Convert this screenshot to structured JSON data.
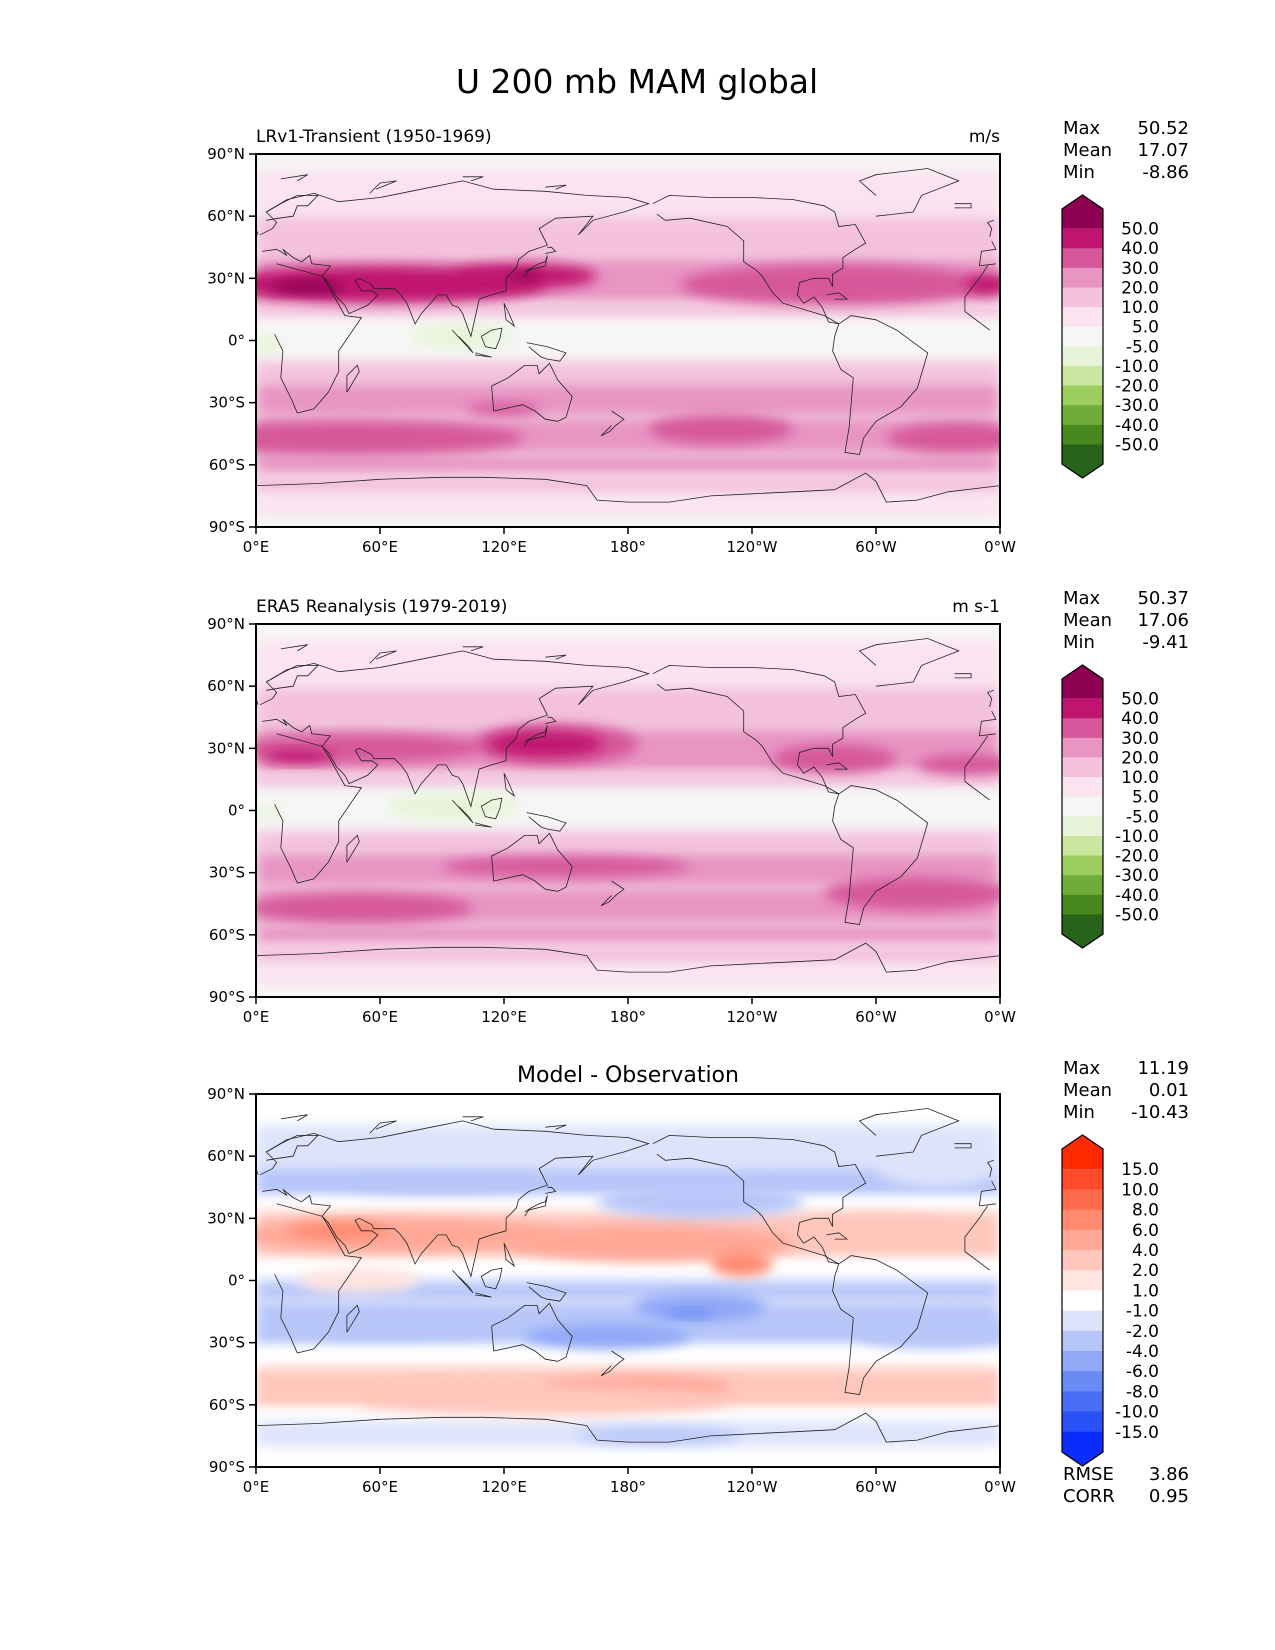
{
  "figure": {
    "title": "U 200 mb MAM global"
  },
  "chart_data": [
    {
      "type": "heatmap",
      "panel_id": "model",
      "title_left": "LRv1-Transient (1950-1969)",
      "title_right": "m/s",
      "title_center": "",
      "xlabel": "",
      "ylabel": "",
      "xlim": [
        0,
        360
      ],
      "ylim": [
        -90,
        90
      ],
      "x_ticks": [
        "0°E",
        "60°E",
        "120°E",
        "180°",
        "120°W",
        "60°W",
        "0°W"
      ],
      "y_ticks": [
        "90°N",
        "60°N",
        "30°N",
        "0°",
        "30°S",
        "60°S",
        "90°S"
      ],
      "stats": [
        {
          "label": "Max",
          "value": "50.52"
        },
        {
          "label": "Mean",
          "value": "17.07"
        },
        {
          "label": "Min",
          "value": "-8.86"
        }
      ],
      "colorbar": {
        "levels": [
          -50,
          -40,
          -30,
          -20,
          -10,
          -5,
          5,
          10,
          20,
          30,
          40,
          50
        ],
        "tick_labels": [
          "50.0",
          "40.0",
          "30.0",
          "20.0",
          "10.0",
          "5.0",
          "-5.0",
          "-10.0",
          "-20.0",
          "-30.0",
          "-40.0",
          "-50.0"
        ],
        "colors_top_to_bottom": [
          "#8e0152",
          "#c0156f",
          "#d6589a",
          "#e895c3",
          "#f4c1de",
          "#fbe3f0",
          "#f6f6f6",
          "#e8f4d9",
          "#c9e7a0",
          "#9ccd5f",
          "#70ac38",
          "#47891f",
          "#27641a"
        ],
        "extend": "both"
      },
      "features": [
        {
          "lon": 60,
          "lat": 27,
          "rlon": 80,
          "rlat": 9,
          "value": 42
        },
        {
          "lon": 130,
          "lat": 31,
          "rlon": 35,
          "rlat": 6,
          "value": 42
        },
        {
          "lon": 25,
          "lat": 26,
          "rlon": 18,
          "rlat": 3,
          "value": 52
        },
        {
          "lon": 130,
          "lat": 31,
          "rlon": 8,
          "rlat": 2,
          "value": 52
        },
        {
          "lon": 280,
          "lat": 27,
          "rlon": 75,
          "rlat": 10,
          "value": 32
        },
        {
          "lon": 355,
          "lat": 27,
          "rlon": 12,
          "rlat": 5,
          "value": 42
        },
        {
          "lon": 45,
          "lat": -47,
          "rlon": 85,
          "rlat": 8,
          "value": 32
        },
        {
          "lon": 225,
          "lat": -43,
          "rlon": 35,
          "rlat": 7,
          "value": 32
        },
        {
          "lon": 340,
          "lat": -47,
          "rlon": 35,
          "rlat": 7,
          "value": 32
        },
        {
          "lon": 120,
          "lat": -33,
          "rlon": 18,
          "rlat": 3,
          "value": 32
        },
        {
          "lon": 100,
          "lat": 2,
          "rlon": 25,
          "rlat": 6,
          "value": -7
        },
        {
          "lon": 5,
          "lat": -2,
          "rlon": 8,
          "rlat": 4,
          "value": -7
        }
      ]
    },
    {
      "type": "heatmap",
      "panel_id": "obs",
      "title_left": "ERA5 Reanalysis (1979-2019)",
      "title_right": "m s-1",
      "title_center": "",
      "xlabel": "",
      "ylabel": "",
      "xlim": [
        0,
        360
      ],
      "ylim": [
        -90,
        90
      ],
      "x_ticks": [
        "0°E",
        "60°E",
        "120°E",
        "180°",
        "120°W",
        "60°W",
        "0°W"
      ],
      "y_ticks": [
        "90°N",
        "60°N",
        "30°N",
        "0°",
        "30°S",
        "60°S",
        "90°S"
      ],
      "stats": [
        {
          "label": "Max",
          "value": "50.37"
        },
        {
          "label": "Mean",
          "value": "17.06"
        },
        {
          "label": "Min",
          "value": "-9.41"
        }
      ],
      "colorbar": {
        "levels": [
          -50,
          -40,
          -30,
          -20,
          -10,
          -5,
          5,
          10,
          20,
          30,
          40,
          50
        ],
        "tick_labels": [
          "50.0",
          "40.0",
          "30.0",
          "20.0",
          "10.0",
          "5.0",
          "-5.0",
          "-10.0",
          "-20.0",
          "-30.0",
          "-40.0",
          "-50.0"
        ],
        "colors_top_to_bottom": [
          "#8e0152",
          "#c0156f",
          "#d6589a",
          "#e895c3",
          "#f4c1de",
          "#fbe3f0",
          "#f6f6f6",
          "#e8f4d9",
          "#c9e7a0",
          "#9ccd5f",
          "#70ac38",
          "#47891f",
          "#27641a"
        ],
        "extend": "both"
      },
      "features": [
        {
          "lon": 50,
          "lat": 30,
          "rlon": 60,
          "rlat": 7,
          "value": 32
        },
        {
          "lon": 20,
          "lat": 26,
          "rlon": 18,
          "rlat": 3,
          "value": 42
        },
        {
          "lon": 145,
          "lat": 32,
          "rlon": 40,
          "rlat": 10,
          "value": 32
        },
        {
          "lon": 140,
          "lat": 32,
          "rlon": 28,
          "rlat": 6,
          "value": 42
        },
        {
          "lon": 280,
          "lat": 25,
          "rlon": 30,
          "rlat": 7,
          "value": 32
        },
        {
          "lon": 345,
          "lat": 22,
          "rlon": 25,
          "rlat": 5,
          "value": 32
        },
        {
          "lon": 50,
          "lat": -47,
          "rlon": 55,
          "rlat": 7,
          "value": 32
        },
        {
          "lon": 150,
          "lat": -27,
          "rlon": 60,
          "rlat": 5,
          "value": 32
        },
        {
          "lon": 320,
          "lat": -40,
          "rlon": 45,
          "rlat": 8,
          "value": 32
        },
        {
          "lon": 95,
          "lat": 2,
          "rlon": 32,
          "rlat": 7,
          "value": -7
        },
        {
          "lon": 5,
          "lat": -1,
          "rlon": 8,
          "rlat": 3,
          "value": -7
        }
      ]
    },
    {
      "type": "heatmap",
      "panel_id": "diff",
      "title_left": "",
      "title_right": "",
      "title_center": "Model - Observation",
      "xlabel": "",
      "ylabel": "",
      "xlim": [
        0,
        360
      ],
      "ylim": [
        -90,
        90
      ],
      "x_ticks": [
        "0°E",
        "60°E",
        "120°E",
        "180°",
        "120°W",
        "60°W",
        "0°W"
      ],
      "y_ticks": [
        "90°N",
        "60°N",
        "30°N",
        "0°",
        "30°S",
        "60°S",
        "90°S"
      ],
      "stats": [
        {
          "label": "Max",
          "value": "11.19"
        },
        {
          "label": "Mean",
          "value": "0.01"
        },
        {
          "label": "Min",
          "value": "-10.43"
        }
      ],
      "extra_stats": [
        {
          "label": "RMSE",
          "value": "3.86"
        },
        {
          "label": "CORR",
          "value": "0.95"
        }
      ],
      "colorbar": {
        "levels": [
          -15,
          -10,
          -8,
          -6,
          -4,
          -2,
          -1,
          1,
          2,
          4,
          6,
          8,
          10,
          15
        ],
        "tick_labels": [
          "15.0",
          "10.0",
          "8.0",
          "6.0",
          "4.0",
          "2.0",
          "1.0",
          "-1.0",
          "-2.0",
          "-4.0",
          "-6.0",
          "-8.0",
          "-10.0",
          "-15.0"
        ],
        "colors_top_to_bottom": [
          "#ff2a00",
          "#ff4b2b",
          "#ff6a4d",
          "#ff8a70",
          "#ffa898",
          "#ffc6bc",
          "#ffe4e0",
          "#ffffff",
          "#dde3fb",
          "#b7c6f9",
          "#91a8f7",
          "#6a8af5",
          "#4a6df5",
          "#2a50f8",
          "#0a2cfc"
        ],
        "extend": "both"
      },
      "features": [
        {
          "lon": 70,
          "lat": 22,
          "rlon": 80,
          "rlat": 8,
          "value": 5
        },
        {
          "lon": 40,
          "lat": 24,
          "rlon": 25,
          "rlat": 4,
          "value": 7
        },
        {
          "lon": 190,
          "lat": 18,
          "rlon": 70,
          "rlat": 9,
          "value": 5
        },
        {
          "lon": 235,
          "lat": 8,
          "rlon": 15,
          "rlat": 6,
          "value": 7
        },
        {
          "lon": 300,
          "lat": 25,
          "rlon": 40,
          "rlat": 7,
          "value": 3
        },
        {
          "lon": 90,
          "lat": 47,
          "rlon": 50,
          "rlat": 5,
          "value": -4
        },
        {
          "lon": 215,
          "lat": 38,
          "rlon": 50,
          "rlat": 8,
          "value": -3
        },
        {
          "lon": 330,
          "lat": 55,
          "rlon": 30,
          "rlat": 10,
          "value": -2
        },
        {
          "lon": 215,
          "lat": -13,
          "rlon": 32,
          "rlat": 7,
          "value": -5
        },
        {
          "lon": 210,
          "lat": -16,
          "rlon": 12,
          "rlat": 2,
          "value": -8
        },
        {
          "lon": 170,
          "lat": -27,
          "rlon": 40,
          "rlat": 6,
          "value": -5
        },
        {
          "lon": 60,
          "lat": -22,
          "rlon": 55,
          "rlat": 6,
          "value": -3
        },
        {
          "lon": 330,
          "lat": -25,
          "rlon": 40,
          "rlat": 8,
          "value": -3
        },
        {
          "lon": 185,
          "lat": -52,
          "rlon": 45,
          "rlat": 6,
          "value": 4
        },
        {
          "lon": 140,
          "lat": -58,
          "rlon": 90,
          "rlat": 7,
          "value": 2
        },
        {
          "lon": 195,
          "lat": -75,
          "rlon": 40,
          "rlat": 4,
          "value": -3
        },
        {
          "lon": 50,
          "lat": 0,
          "rlon": 30,
          "rlat": 6,
          "value": 1.5
        }
      ]
    }
  ]
}
